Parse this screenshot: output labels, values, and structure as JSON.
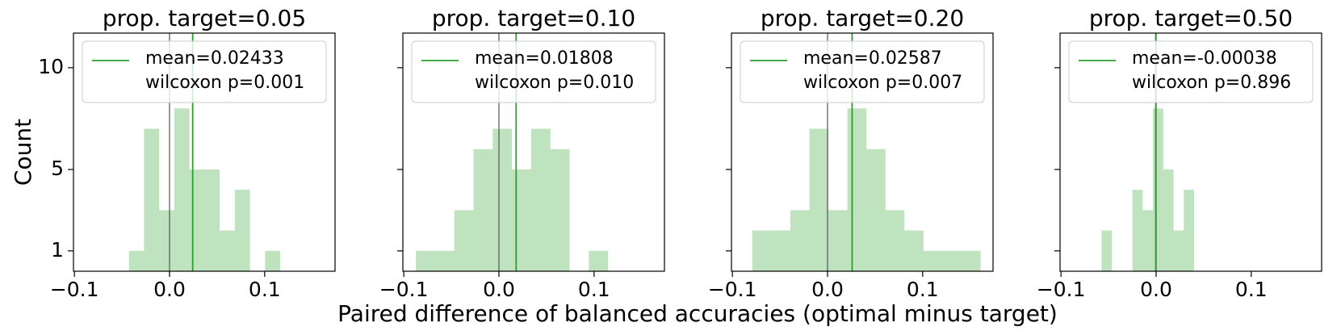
{
  "chart_data": [
    {
      "type": "histogram",
      "title": "prop. target=0.05",
      "ylabel": "Count",
      "xlabel": "Paired difference of balanced accuracies (optimal minus target)",
      "bins": [
        -0.0427,
        -0.0268,
        -0.0109,
        0.005,
        0.0209,
        0.0368,
        0.0527,
        0.0686,
        0.0845,
        0.1005,
        0.1164
      ],
      "counts": [
        1,
        7,
        3,
        8,
        5,
        5,
        2,
        4,
        0,
        1
      ],
      "mean_line": 0.02433,
      "ref_line": 0,
      "legend": [
        "mean=0.02433",
        "wilcoxon p=0.001"
      ],
      "color": "#2ca02c",
      "ref_color": "#555555",
      "xlim": [
        -0.101,
        0.174
      ],
      "xticks": [
        {
          "value": -0.1,
          "label": "−0.1"
        },
        {
          "value": 0,
          "label": "0.0"
        },
        0.1
      ],
      "ylim": [
        0,
        11.7
      ],
      "yticks": [
        1,
        5,
        10
      ],
      "ytick_labels": true
    },
    {
      "type": "histogram",
      "title": "prop. target=0.10",
      "bins": [
        -0.0873,
        -0.0671,
        -0.0469,
        -0.0267,
        -0.0065,
        0.0137,
        0.0339,
        0.0541,
        0.0743,
        0.0945,
        0.1147
      ],
      "counts": [
        1,
        1,
        3,
        6,
        7,
        5,
        7,
        6,
        0,
        1
      ],
      "mean_line": 0.01808,
      "ref_line": 0,
      "legend": [
        "mean=0.01808",
        "wilcoxon p=0.010"
      ],
      "color": "#2ca02c",
      "ref_color": "#555555",
      "xlim": [
        -0.101,
        0.174
      ],
      "xticks": [
        {
          "value": -0.1,
          "label": "−0.1"
        },
        {
          "value": 0,
          "label": "0.0"
        },
        0.1
      ],
      "ylim": [
        0,
        11.7
      ],
      "yticks": [
        1,
        5,
        10
      ],
      "ytick_labels": false
    },
    {
      "type": "histogram",
      "title": "prop. target=0.20",
      "bins": [
        -0.0791,
        -0.0591,
        -0.0391,
        -0.0191,
        0.0009,
        0.0209,
        0.0409,
        0.0609,
        0.0809,
        0.1009,
        0.1209,
        0.1409,
        0.1609
      ],
      "counts": [
        2,
        2,
        3,
        7,
        3,
        8,
        6,
        3,
        2,
        1,
        1,
        1
      ],
      "mean_line": 0.02587,
      "ref_line": 0,
      "legend": [
        "mean=0.02587",
        "wilcoxon p=0.007"
      ],
      "color": "#2ca02c",
      "ref_color": "#555555",
      "xlim": [
        -0.101,
        0.174
      ],
      "xticks": [
        {
          "value": -0.1,
          "label": "−0.1"
        },
        {
          "value": 0,
          "label": "0.0"
        },
        0.1
      ],
      "ylim": [
        0,
        11.7
      ],
      "yticks": [
        1,
        5,
        10
      ],
      "ytick_labels": false
    },
    {
      "type": "histogram",
      "title": "prop. target=0.50",
      "bins": [
        -0.0573,
        -0.0465,
        -0.0357,
        -0.0249,
        -0.0141,
        -0.0033,
        0.0075,
        0.0183,
        0.0291,
        0.0399
      ],
      "counts": [
        2,
        0,
        0,
        4,
        3,
        8,
        5,
        2,
        4
      ],
      "mean_line": -0.00038,
      "ref_line": 0,
      "legend": [
        "mean=-0.00038",
        "wilcoxon p=0.896"
      ],
      "color": "#2ca02c",
      "ref_color": "#555555",
      "xlim": [
        -0.101,
        0.174
      ],
      "xticks": [
        {
          "value": -0.1,
          "label": "−0.1"
        },
        {
          "value": 0,
          "label": "0.0"
        },
        0.1
      ],
      "ylim": [
        0,
        11.7
      ],
      "yticks": [
        1,
        5,
        10
      ],
      "ytick_labels": false
    }
  ]
}
